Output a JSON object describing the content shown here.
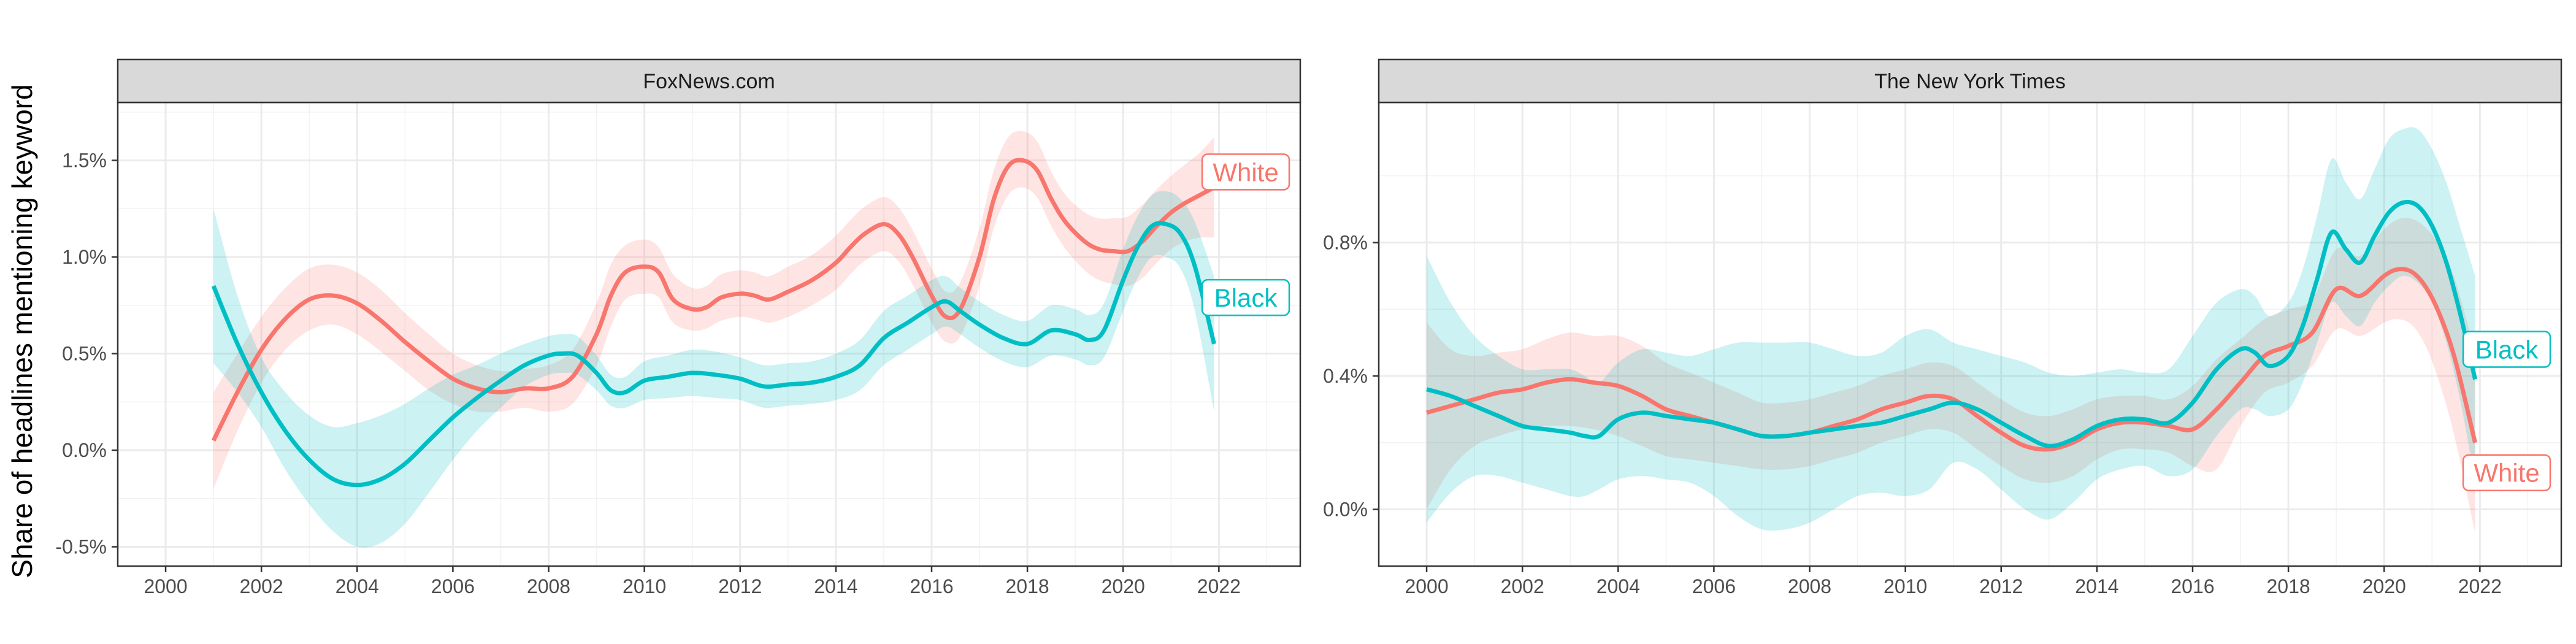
{
  "ylabel": "Share of headlines mentioning keyword",
  "colors": {
    "White": "#F8766D",
    "Black": "#00BFC4"
  },
  "chart_data": [
    {
      "type": "line",
      "title": "FoxNews.com",
      "xlabel": "",
      "xlim": [
        1999,
        2023.7
      ],
      "ylim": [
        -0.6,
        1.8
      ],
      "xticks": [
        2000,
        2002,
        2004,
        2006,
        2008,
        2010,
        2012,
        2014,
        2016,
        2018,
        2020,
        2022
      ],
      "yticks": [
        -0.5,
        0.0,
        0.5,
        1.0,
        1.5
      ],
      "ytick_labels": [
        "-0.5%",
        "0.0%",
        "0.5%",
        "1.0%",
        "1.5%"
      ],
      "end_labels": [
        {
          "series": "White",
          "text": "White",
          "y": 1.44
        },
        {
          "series": "Black",
          "text": "Black",
          "y": 0.79
        }
      ],
      "series": [
        {
          "name": "White",
          "x": [
            2001.0,
            2001.5,
            2002.0,
            2002.5,
            2003.0,
            2003.5,
            2004.0,
            2004.5,
            2005.0,
            2005.5,
            2006.0,
            2006.5,
            2007.0,
            2007.5,
            2008.0,
            2008.5,
            2009.0,
            2009.3,
            2009.6,
            2010.0,
            2010.3,
            2010.6,
            2011.0,
            2011.3,
            2011.6,
            2012.0,
            2012.3,
            2012.6,
            2013.0,
            2013.5,
            2014.0,
            2014.3,
            2014.6,
            2015.0,
            2015.3,
            2015.6,
            2016.0,
            2016.3,
            2016.6,
            2017.0,
            2017.3,
            2017.6,
            2017.9,
            2018.2,
            2018.5,
            2018.8,
            2019.2,
            2019.5,
            2019.8,
            2020.1,
            2020.4,
            2020.7,
            2021.0,
            2021.3,
            2021.6,
            2021.9
          ],
          "y": [
            0.05,
            0.3,
            0.52,
            0.68,
            0.78,
            0.8,
            0.76,
            0.67,
            0.56,
            0.46,
            0.37,
            0.32,
            0.3,
            0.32,
            0.32,
            0.38,
            0.6,
            0.8,
            0.92,
            0.95,
            0.92,
            0.78,
            0.73,
            0.74,
            0.79,
            0.81,
            0.8,
            0.78,
            0.82,
            0.88,
            0.97,
            1.05,
            1.12,
            1.17,
            1.12,
            1.0,
            0.8,
            0.69,
            0.73,
            1.0,
            1.3,
            1.47,
            1.5,
            1.45,
            1.3,
            1.18,
            1.08,
            1.04,
            1.03,
            1.03,
            1.08,
            1.16,
            1.23,
            1.28,
            1.32,
            1.36
          ],
          "lower": [
            -0.2,
            0.1,
            0.35,
            0.52,
            0.62,
            0.65,
            0.6,
            0.51,
            0.41,
            0.31,
            0.24,
            0.2,
            0.2,
            0.22,
            0.2,
            0.24,
            0.44,
            0.64,
            0.78,
            0.81,
            0.79,
            0.66,
            0.62,
            0.63,
            0.67,
            0.69,
            0.68,
            0.66,
            0.69,
            0.75,
            0.83,
            0.91,
            0.98,
            1.03,
            0.98,
            0.86,
            0.66,
            0.56,
            0.59,
            0.85,
            1.15,
            1.32,
            1.36,
            1.31,
            1.16,
            1.04,
            0.93,
            0.88,
            0.86,
            0.85,
            0.89,
            0.97,
            1.04,
            1.08,
            1.1,
            1.1
          ],
          "upper": [
            0.3,
            0.5,
            0.69,
            0.84,
            0.94,
            0.96,
            0.92,
            0.83,
            0.71,
            0.6,
            0.5,
            0.44,
            0.41,
            0.42,
            0.44,
            0.52,
            0.76,
            0.96,
            1.06,
            1.09,
            1.05,
            0.91,
            0.84,
            0.85,
            0.91,
            0.93,
            0.92,
            0.9,
            0.95,
            1.01,
            1.11,
            1.19,
            1.26,
            1.31,
            1.26,
            1.14,
            0.94,
            0.82,
            0.87,
            1.15,
            1.45,
            1.62,
            1.65,
            1.6,
            1.44,
            1.32,
            1.23,
            1.2,
            1.2,
            1.21,
            1.27,
            1.35,
            1.42,
            1.48,
            1.54,
            1.62
          ]
        },
        {
          "name": "Black",
          "x": [
            2001.0,
            2001.5,
            2002.0,
            2002.5,
            2003.0,
            2003.5,
            2004.0,
            2004.5,
            2005.0,
            2005.5,
            2006.0,
            2006.5,
            2007.0,
            2007.5,
            2008.0,
            2008.3,
            2008.6,
            2009.0,
            2009.3,
            2009.6,
            2010.0,
            2010.5,
            2011.0,
            2011.5,
            2012.0,
            2012.5,
            2013.0,
            2013.5,
            2014.0,
            2014.5,
            2015.0,
            2015.5,
            2016.0,
            2016.3,
            2016.6,
            2017.0,
            2017.5,
            2018.0,
            2018.5,
            2019.0,
            2019.3,
            2019.6,
            2020.0,
            2020.3,
            2020.6,
            2020.9,
            2021.2,
            2021.5,
            2021.9
          ],
          "y": [
            0.85,
            0.55,
            0.3,
            0.1,
            -0.05,
            -0.15,
            -0.18,
            -0.15,
            -0.07,
            0.05,
            0.17,
            0.27,
            0.36,
            0.44,
            0.49,
            0.5,
            0.49,
            0.4,
            0.31,
            0.3,
            0.36,
            0.38,
            0.4,
            0.39,
            0.37,
            0.33,
            0.34,
            0.35,
            0.38,
            0.44,
            0.58,
            0.66,
            0.74,
            0.77,
            0.72,
            0.65,
            0.58,
            0.55,
            0.62,
            0.6,
            0.57,
            0.62,
            0.88,
            1.05,
            1.16,
            1.17,
            1.12,
            0.95,
            0.55
          ],
          "lower": [
            0.45,
            0.3,
            0.12,
            -0.1,
            -0.28,
            -0.42,
            -0.5,
            -0.48,
            -0.38,
            -0.22,
            -0.05,
            0.1,
            0.22,
            0.33,
            0.39,
            0.4,
            0.39,
            0.31,
            0.23,
            0.22,
            0.26,
            0.27,
            0.28,
            0.27,
            0.26,
            0.22,
            0.23,
            0.24,
            0.26,
            0.31,
            0.44,
            0.52,
            0.6,
            0.64,
            0.6,
            0.53,
            0.46,
            0.43,
            0.49,
            0.47,
            0.44,
            0.48,
            0.72,
            0.89,
            1.0,
            1.0,
            0.94,
            0.72,
            0.2
          ],
          "upper": [
            1.25,
            0.8,
            0.48,
            0.3,
            0.18,
            0.12,
            0.14,
            0.18,
            0.24,
            0.32,
            0.39,
            0.44,
            0.5,
            0.55,
            0.59,
            0.6,
            0.59,
            0.49,
            0.39,
            0.38,
            0.46,
            0.49,
            0.52,
            0.51,
            0.48,
            0.44,
            0.45,
            0.46,
            0.5,
            0.57,
            0.72,
            0.8,
            0.88,
            0.9,
            0.84,
            0.77,
            0.7,
            0.67,
            0.75,
            0.73,
            0.7,
            0.76,
            1.04,
            1.21,
            1.32,
            1.34,
            1.3,
            1.18,
            0.9
          ]
        }
      ]
    },
    {
      "type": "line",
      "title": "The New York Times",
      "xlabel": "",
      "xlim": [
        1999,
        2023.7
      ],
      "ylim": [
        -0.17,
        1.22
      ],
      "xticks": [
        2000,
        2002,
        2004,
        2006,
        2008,
        2010,
        2012,
        2014,
        2016,
        2018,
        2020,
        2022
      ],
      "yticks": [
        0.0,
        0.4,
        0.8
      ],
      "ytick_labels": [
        "0.0%",
        "0.4%",
        "0.8%"
      ],
      "end_labels": [
        {
          "series": "Black",
          "text": "Black",
          "y": 0.48
        },
        {
          "series": "White",
          "text": "White",
          "y": 0.11
        }
      ],
      "series": [
        {
          "name": "White",
          "x": [
            2000.0,
            2000.5,
            2001.0,
            2001.5,
            2002.0,
            2002.5,
            2003.0,
            2003.5,
            2004.0,
            2004.5,
            2005.0,
            2005.5,
            2006.0,
            2006.5,
            2007.0,
            2007.5,
            2008.0,
            2008.5,
            2009.0,
            2009.5,
            2010.0,
            2010.5,
            2011.0,
            2011.5,
            2012.0,
            2012.5,
            2013.0,
            2013.5,
            2014.0,
            2014.5,
            2015.0,
            2015.5,
            2016.0,
            2016.5,
            2017.0,
            2017.5,
            2018.0,
            2018.5,
            2019.0,
            2019.5,
            2020.0,
            2020.3,
            2020.6,
            2020.9,
            2021.2,
            2021.5,
            2021.9
          ],
          "y": [
            0.29,
            0.31,
            0.33,
            0.35,
            0.36,
            0.38,
            0.39,
            0.38,
            0.37,
            0.34,
            0.3,
            0.28,
            0.26,
            0.24,
            0.22,
            0.22,
            0.23,
            0.25,
            0.27,
            0.3,
            0.32,
            0.34,
            0.33,
            0.28,
            0.23,
            0.19,
            0.18,
            0.2,
            0.24,
            0.26,
            0.26,
            0.25,
            0.24,
            0.3,
            0.38,
            0.46,
            0.49,
            0.53,
            0.66,
            0.64,
            0.7,
            0.72,
            0.71,
            0.66,
            0.57,
            0.44,
            0.2
          ],
          "lower": [
            0.0,
            0.12,
            0.19,
            0.22,
            0.24,
            0.25,
            0.25,
            0.24,
            0.22,
            0.19,
            0.16,
            0.15,
            0.14,
            0.13,
            0.12,
            0.12,
            0.13,
            0.15,
            0.17,
            0.2,
            0.22,
            0.24,
            0.23,
            0.18,
            0.13,
            0.09,
            0.08,
            0.1,
            0.15,
            0.18,
            0.18,
            0.17,
            0.13,
            0.12,
            0.25,
            0.35,
            0.38,
            0.43,
            0.54,
            0.52,
            0.56,
            0.57,
            0.55,
            0.48,
            0.36,
            0.2,
            -0.07
          ],
          "upper": [
            0.56,
            0.48,
            0.46,
            0.47,
            0.48,
            0.51,
            0.53,
            0.52,
            0.52,
            0.49,
            0.44,
            0.41,
            0.38,
            0.35,
            0.32,
            0.32,
            0.33,
            0.35,
            0.37,
            0.4,
            0.42,
            0.44,
            0.43,
            0.38,
            0.33,
            0.29,
            0.28,
            0.3,
            0.33,
            0.34,
            0.34,
            0.33,
            0.37,
            0.45,
            0.51,
            0.57,
            0.6,
            0.63,
            0.78,
            0.76,
            0.84,
            0.87,
            0.87,
            0.84,
            0.78,
            0.68,
            0.47
          ]
        },
        {
          "name": "Black",
          "x": [
            2000.0,
            2000.5,
            2001.0,
            2001.5,
            2002.0,
            2002.5,
            2003.0,
            2003.3,
            2003.6,
            2004.0,
            2004.5,
            2005.0,
            2005.5,
            2006.0,
            2006.5,
            2007.0,
            2007.5,
            2008.0,
            2008.5,
            2009.0,
            2009.5,
            2010.0,
            2010.5,
            2011.0,
            2011.5,
            2012.0,
            2012.5,
            2013.0,
            2013.5,
            2014.0,
            2014.5,
            2015.0,
            2015.5,
            2016.0,
            2016.5,
            2017.0,
            2017.3,
            2017.6,
            2018.0,
            2018.3,
            2018.6,
            2018.9,
            2019.2,
            2019.5,
            2019.8,
            2020.1,
            2020.4,
            2020.7,
            2021.0,
            2021.3,
            2021.6,
            2021.9
          ],
          "y": [
            0.36,
            0.34,
            0.31,
            0.28,
            0.25,
            0.24,
            0.23,
            0.22,
            0.22,
            0.27,
            0.29,
            0.28,
            0.27,
            0.26,
            0.24,
            0.22,
            0.22,
            0.23,
            0.24,
            0.25,
            0.26,
            0.28,
            0.3,
            0.32,
            0.3,
            0.26,
            0.22,
            0.19,
            0.21,
            0.25,
            0.27,
            0.27,
            0.26,
            0.32,
            0.42,
            0.48,
            0.47,
            0.43,
            0.46,
            0.55,
            0.69,
            0.83,
            0.78,
            0.74,
            0.82,
            0.89,
            0.92,
            0.91,
            0.85,
            0.74,
            0.58,
            0.39
          ],
          "lower": [
            -0.04,
            0.05,
            0.1,
            0.1,
            0.08,
            0.06,
            0.04,
            0.04,
            0.06,
            0.09,
            0.1,
            0.09,
            0.08,
            0.04,
            -0.02,
            -0.06,
            -0.06,
            -0.04,
            0.0,
            0.04,
            0.05,
            0.04,
            0.06,
            0.14,
            0.12,
            0.06,
            0.0,
            -0.03,
            0.02,
            0.09,
            0.12,
            0.13,
            0.1,
            0.12,
            0.22,
            0.3,
            0.3,
            0.28,
            0.3,
            0.38,
            0.5,
            0.62,
            0.58,
            0.55,
            0.62,
            0.67,
            0.7,
            0.68,
            0.62,
            0.5,
            0.32,
            0.08
          ],
          "upper": [
            0.76,
            0.62,
            0.52,
            0.46,
            0.42,
            0.42,
            0.42,
            0.4,
            0.38,
            0.44,
            0.48,
            0.47,
            0.46,
            0.48,
            0.5,
            0.5,
            0.5,
            0.5,
            0.48,
            0.46,
            0.47,
            0.52,
            0.54,
            0.5,
            0.48,
            0.46,
            0.44,
            0.41,
            0.4,
            0.41,
            0.42,
            0.41,
            0.42,
            0.52,
            0.62,
            0.66,
            0.64,
            0.58,
            0.62,
            0.72,
            0.88,
            1.05,
            0.98,
            0.93,
            1.02,
            1.11,
            1.14,
            1.14,
            1.08,
            0.98,
            0.84,
            0.7
          ]
        }
      ]
    }
  ]
}
